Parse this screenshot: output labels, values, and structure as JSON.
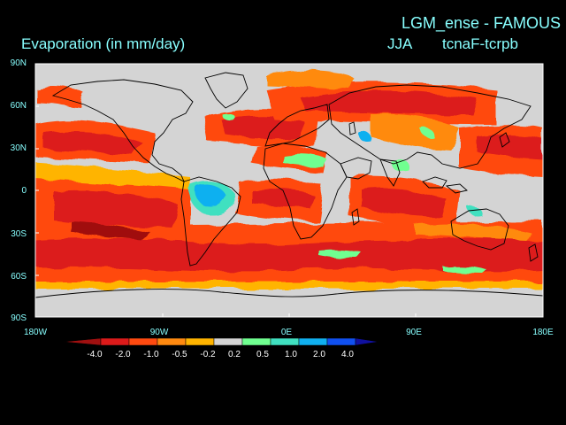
{
  "title": {
    "line1": "LGM_ense - FAMOUS",
    "variable": "Evaporation (in mm/day)",
    "season": "JJA",
    "experiment": "tcnaF-tcrpb"
  },
  "axes": {
    "lat_ticks": [
      "90N",
      "60N",
      "30N",
      "0",
      "30S",
      "60S",
      "90S"
    ],
    "lon_ticks": [
      "180W",
      "90W",
      "0E",
      "90E",
      "180E"
    ]
  },
  "colorbar": {
    "labels": [
      "-4.0",
      "-2.0",
      "-1.0",
      "-0.5",
      "-0.2",
      "0.2",
      "0.5",
      "1.0",
      "2.0",
      "4.0"
    ],
    "colors": [
      "#a01010",
      "#dc1a1a",
      "#ff4a10",
      "#ff8a10",
      "#ffb400",
      "#d4d4d4",
      "#70ff90",
      "#40e0c0",
      "#10b0f0",
      "#1050f0",
      "#1010a0"
    ]
  },
  "map": {
    "projection": "cylindrical equidistant",
    "domain": "global",
    "background_color": "#d4d4d4",
    "coastline_color": "#000000"
  }
}
